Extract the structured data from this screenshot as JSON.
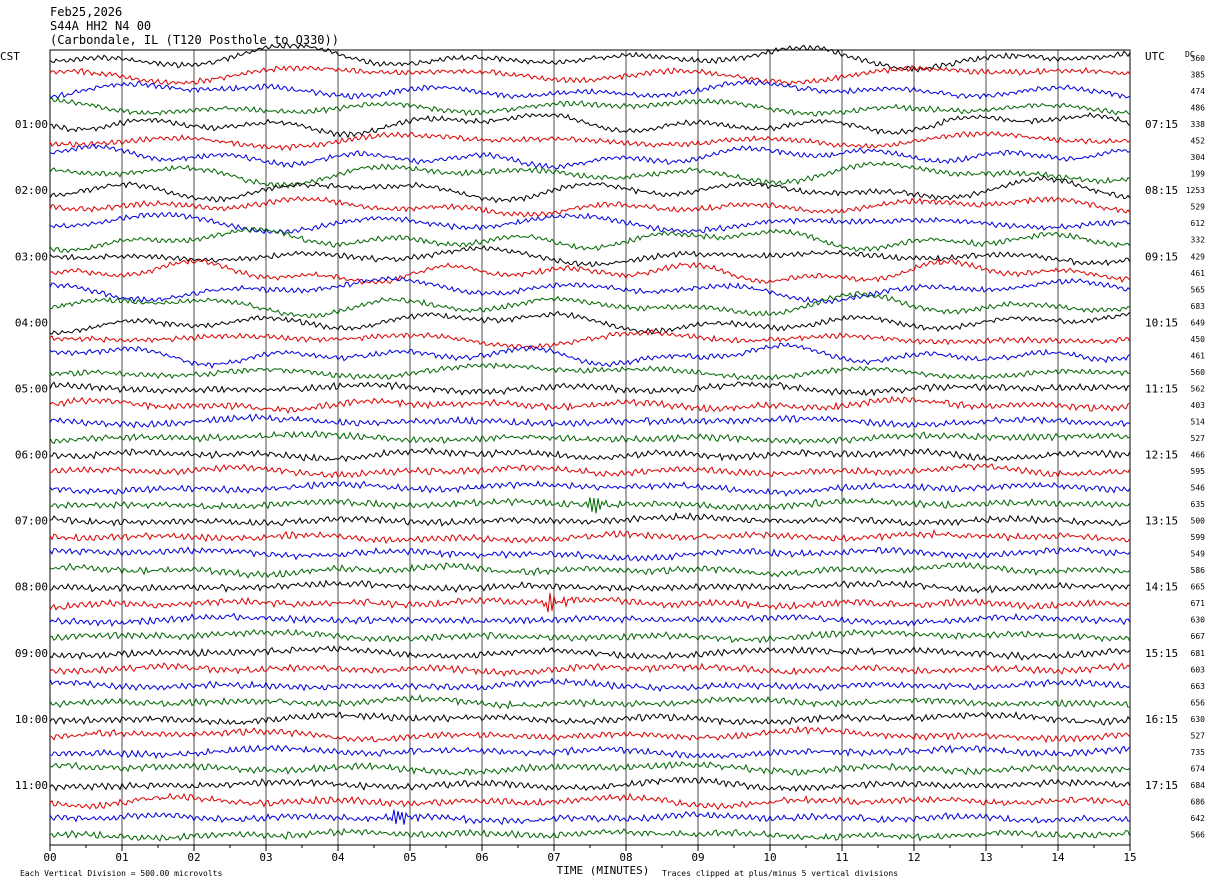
{
  "header": {
    "date": "Feb25,2026",
    "station": "S44A HH2 N4 00",
    "location": "(Carbondale, IL (T120 Posthole to Q330))"
  },
  "axis_labels": {
    "left_tz": "CST",
    "right_tz": "UTC",
    "dc_header": "DC",
    "xlabel": "TIME (MINUTES)",
    "scale_note": "Each Vertical Division =  500.00 microvolts",
    "clip_note": "Traces clipped at plus/minus 5 vertical divisions"
  },
  "chart_data": {
    "type": "line",
    "title": "S44A HH2 N4 00",
    "xlabel": "TIME (MINUTES)",
    "ylabel": "",
    "xlim": [
      0,
      15
    ],
    "x_ticks": [
      "00",
      "01",
      "02",
      "03",
      "04",
      "05",
      "06",
      "07",
      "08",
      "09",
      "10",
      "11",
      "12",
      "13",
      "14",
      "15"
    ],
    "trace_count": 48,
    "trace_colors": [
      "#000000",
      "#dd0000",
      "#0000dd",
      "#006600"
    ],
    "left_time_labels": [
      "01:00",
      "02:00",
      "03:00",
      "04:00",
      "05:00",
      "06:00",
      "07:00",
      "08:00",
      "09:00",
      "10:00",
      "11:00"
    ],
    "right_time_labels": [
      "07:15",
      "08:15",
      "09:15",
      "10:15",
      "11:15",
      "12:15",
      "13:15",
      "14:15",
      "15:15",
      "16:15",
      "17:15"
    ],
    "dc_offsets": [
      360,
      385,
      474,
      486,
      338,
      452,
      304,
      199,
      1253,
      529,
      612,
      332,
      429,
      461,
      565,
      683,
      649,
      450,
      461,
      560,
      562,
      403,
      514,
      527,
      466,
      595,
      546,
      635,
      500,
      599,
      549,
      586,
      665,
      671,
      630,
      667,
      681,
      603,
      663,
      656,
      630,
      527,
      735,
      674,
      684,
      686,
      642,
      566
    ],
    "events": [
      {
        "trace": 27,
        "minute": 7.5,
        "label": "local event"
      },
      {
        "trace": 33,
        "minute": 6.9,
        "label": "local event"
      },
      {
        "trace": 46,
        "minute": 4.75,
        "label": "local event"
      }
    ]
  }
}
